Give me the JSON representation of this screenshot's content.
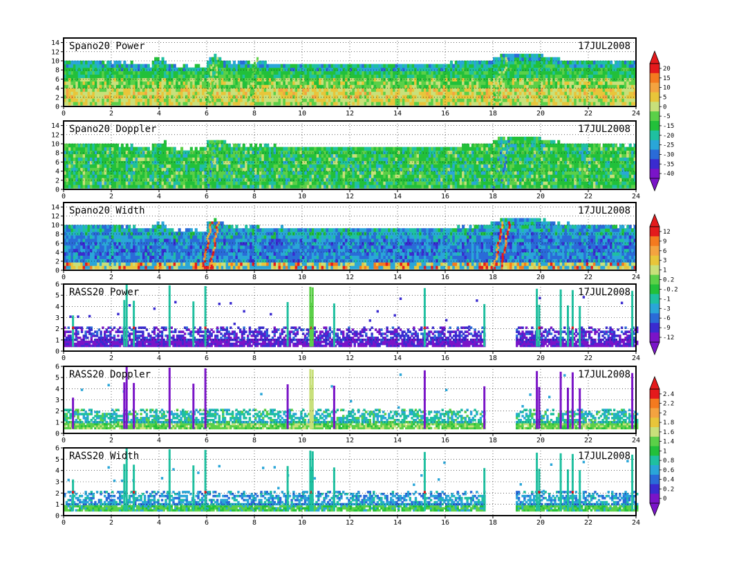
{
  "chart_data": [
    {
      "type": "heatmap",
      "title": "Spano20 Power",
      "date_label": "17JUL2008",
      "x_ticks": [
        "0",
        "2",
        "4",
        "6",
        "8",
        "10",
        "12",
        "14",
        "16",
        "18",
        "20",
        "22",
        "24"
      ],
      "y_ticks": [
        "0",
        "2",
        "4",
        "6",
        "8",
        "10",
        "12",
        "14"
      ],
      "xlim": [
        0,
        24
      ],
      "ylim": [
        0,
        15
      ],
      "grid": true,
      "colorbar": "power",
      "top_profile": [
        [
          0,
          9.8
        ],
        [
          1.5,
          9.6
        ],
        [
          2.4,
          9.3
        ],
        [
          3.4,
          9.0
        ],
        [
          3.6,
          8.6
        ],
        [
          3.7,
          9.9
        ],
        [
          4.2,
          10.0
        ],
        [
          4.3,
          8.6
        ],
        [
          5.9,
          8.5
        ],
        [
          6.0,
          10.2
        ],
        [
          6.3,
          10.8
        ],
        [
          7.0,
          9.4
        ],
        [
          8.5,
          9.2
        ],
        [
          10.0,
          8.9
        ],
        [
          11.0,
          9.0
        ],
        [
          13.5,
          8.8
        ],
        [
          15.5,
          8.8
        ],
        [
          16.8,
          9.4
        ],
        [
          17.8,
          9.8
        ],
        [
          18.4,
          11.0
        ],
        [
          19.0,
          11.2
        ],
        [
          19.7,
          11.0
        ],
        [
          20.5,
          10.2
        ],
        [
          22.0,
          9.6
        ],
        [
          24.0,
          9.3
        ]
      ],
      "streaks": [
        5.9,
        6.1,
        7.7,
        18.0,
        18.2
      ]
    },
    {
      "type": "heatmap",
      "title": "Spano20 Doppler",
      "date_label": "17JUL2008",
      "x_ticks": [
        "0",
        "2",
        "4",
        "6",
        "8",
        "10",
        "12",
        "14",
        "16",
        "18",
        "20",
        "22",
        "24"
      ],
      "y_ticks": [
        "0",
        "2",
        "4",
        "6",
        "8",
        "10",
        "12",
        "14"
      ],
      "xlim": [
        0,
        24
      ],
      "ylim": [
        0,
        15
      ],
      "grid": true,
      "colorbar": "power",
      "top_profile": [
        [
          0,
          9.8
        ],
        [
          1.5,
          9.6
        ],
        [
          2.4,
          9.3
        ],
        [
          3.4,
          9.0
        ],
        [
          3.6,
          8.6
        ],
        [
          3.7,
          9.9
        ],
        [
          4.2,
          10.0
        ],
        [
          4.3,
          8.6
        ],
        [
          5.9,
          8.5
        ],
        [
          6.0,
          10.2
        ],
        [
          6.3,
          10.8
        ],
        [
          7.0,
          9.4
        ],
        [
          8.5,
          9.2
        ],
        [
          10.0,
          8.9
        ],
        [
          11.0,
          9.0
        ],
        [
          13.5,
          8.8
        ],
        [
          15.5,
          8.8
        ],
        [
          16.8,
          9.4
        ],
        [
          17.8,
          9.8
        ],
        [
          18.4,
          11.0
        ],
        [
          19.0,
          11.2
        ],
        [
          19.7,
          11.0
        ],
        [
          20.5,
          10.2
        ],
        [
          22.0,
          9.6
        ],
        [
          24.0,
          9.3
        ]
      ],
      "streaks": [
        6.0,
        18.0,
        18.3
      ]
    },
    {
      "type": "heatmap",
      "title": "Spano20 Width",
      "date_label": "17JUL2008",
      "x_ticks": [
        "0",
        "2",
        "4",
        "6",
        "8",
        "10",
        "12",
        "14",
        "16",
        "18",
        "20",
        "22",
        "24"
      ],
      "y_ticks": [
        "0",
        "2",
        "4",
        "6",
        "8",
        "10",
        "12",
        "14"
      ],
      "xlim": [
        0,
        24
      ],
      "ylim": [
        0,
        15
      ],
      "grid": true,
      "colorbar": "width",
      "top_profile": [
        [
          0,
          9.8
        ],
        [
          1.5,
          9.6
        ],
        [
          2.4,
          9.3
        ],
        [
          3.4,
          9.0
        ],
        [
          3.6,
          8.6
        ],
        [
          3.7,
          9.9
        ],
        [
          4.2,
          10.0
        ],
        [
          4.3,
          8.6
        ],
        [
          5.9,
          8.5
        ],
        [
          6.0,
          10.2
        ],
        [
          6.3,
          10.8
        ],
        [
          7.0,
          9.4
        ],
        [
          8.5,
          9.2
        ],
        [
          10.0,
          8.9
        ],
        [
          11.0,
          9.0
        ],
        [
          13.5,
          8.8
        ],
        [
          15.5,
          8.8
        ],
        [
          16.8,
          9.4
        ],
        [
          17.8,
          9.8
        ],
        [
          18.4,
          11.0
        ],
        [
          19.0,
          11.2
        ],
        [
          19.7,
          11.0
        ],
        [
          20.5,
          10.2
        ],
        [
          22.0,
          9.6
        ],
        [
          24.0,
          9.3
        ]
      ],
      "streaks": [
        5.8,
        6.1,
        18.0,
        18.3
      ]
    },
    {
      "type": "heatmap",
      "title": "RASS20 Power",
      "date_label": "17JUL2008",
      "x_ticks": [
        "0",
        "2",
        "4",
        "6",
        "8",
        "10",
        "12",
        "14",
        "16",
        "18",
        "20",
        "22",
        "24"
      ],
      "y_ticks": [
        "0",
        "1",
        "2",
        "3",
        "4",
        "5",
        "6"
      ],
      "xlim": [
        0,
        24
      ],
      "ylim": [
        0,
        6
      ],
      "grid": true,
      "colorbar": "rass",
      "gap": [
        17.6,
        18.9
      ],
      "spikes": [
        0.35,
        2.5,
        2.6,
        2.9,
        4.4,
        5.4,
        5.9,
        9.35,
        10.3,
        10.35,
        10.4,
        11.3,
        15.1,
        17.6,
        19.8,
        19.9,
        20.8,
        21.1,
        21.3,
        21.6,
        23.8
      ]
    },
    {
      "type": "heatmap",
      "title": "RASS20 Doppler",
      "date_label": "17JUL2008",
      "x_ticks": [
        "0",
        "2",
        "4",
        "6",
        "8",
        "10",
        "12",
        "14",
        "16",
        "18",
        "20",
        "22",
        "24"
      ],
      "y_ticks": [
        "0",
        "1",
        "2",
        "3",
        "4",
        "5",
        "6"
      ],
      "xlim": [
        0,
        24
      ],
      "ylim": [
        0,
        6
      ],
      "grid": true,
      "colorbar": "rass",
      "gap": [
        17.6,
        18.9
      ],
      "spikes": [
        0.35,
        2.5,
        2.6,
        2.9,
        4.4,
        5.4,
        5.9,
        9.35,
        10.3,
        10.35,
        10.4,
        11.3,
        15.1,
        17.6,
        19.8,
        19.9,
        20.8,
        21.1,
        21.3,
        21.6,
        23.8
      ]
    },
    {
      "type": "heatmap",
      "title": "RASS20 Width",
      "date_label": "17JUL2008",
      "x_ticks": [
        "0",
        "2",
        "4",
        "6",
        "8",
        "10",
        "12",
        "14",
        "16",
        "18",
        "20",
        "22",
        "24"
      ],
      "y_ticks": [
        "0",
        "1",
        "2",
        "3",
        "4",
        "5",
        "6"
      ],
      "xlim": [
        0,
        24
      ],
      "ylim": [
        0,
        6
      ],
      "grid": true,
      "colorbar": "rass",
      "gap": [
        17.6,
        18.9
      ],
      "spikes": [
        0.35,
        2.5,
        2.6,
        2.9,
        4.4,
        5.4,
        5.9,
        9.35,
        10.3,
        10.35,
        10.4,
        11.3,
        15.1,
        17.6,
        19.8,
        19.9,
        20.8,
        21.1,
        21.3,
        21.6,
        23.8
      ]
    }
  ],
  "colorbars": {
    "power": {
      "labels": [
        "20",
        "15",
        "10",
        "5",
        "0",
        "-5",
        "-15",
        "-20",
        "-25",
        "-30",
        "-35",
        "-40"
      ],
      "colors": [
        "#e41a1c",
        "#f47a1f",
        "#f4a340",
        "#e8c53a",
        "#c8e07a",
        "#5bd048",
        "#22c03a",
        "#1fc0a0",
        "#2aa6d8",
        "#2a6bd8",
        "#3a2bd0",
        "#7a14c8"
      ]
    },
    "width": {
      "labels": [
        "12",
        "9",
        "6",
        "3",
        "1",
        "0.2",
        "-0.2",
        "-1",
        "-3",
        "-6",
        "-9",
        "-12"
      ],
      "colors": [
        "#e41a1c",
        "#f47a1f",
        "#f4a340",
        "#e8c53a",
        "#c8e07a",
        "#5bd048",
        "#22c03a",
        "#1fc0a0",
        "#2aa6d8",
        "#2a6bd8",
        "#3a2bd0",
        "#7a14c8"
      ]
    },
    "rass": {
      "labels": [
        "2.4",
        "2.2",
        "2",
        "1.8",
        "1.6",
        "1.4",
        "1",
        "0.8",
        "0.6",
        "0.4",
        "0.2",
        "0"
      ],
      "colors": [
        "#e41a1c",
        "#f47a1f",
        "#f4a340",
        "#e8c53a",
        "#c8e07a",
        "#5bd048",
        "#22c03a",
        "#1fc0a0",
        "#2aa6d8",
        "#2a6bd8",
        "#3a2bd0",
        "#7a14c8"
      ]
    }
  }
}
